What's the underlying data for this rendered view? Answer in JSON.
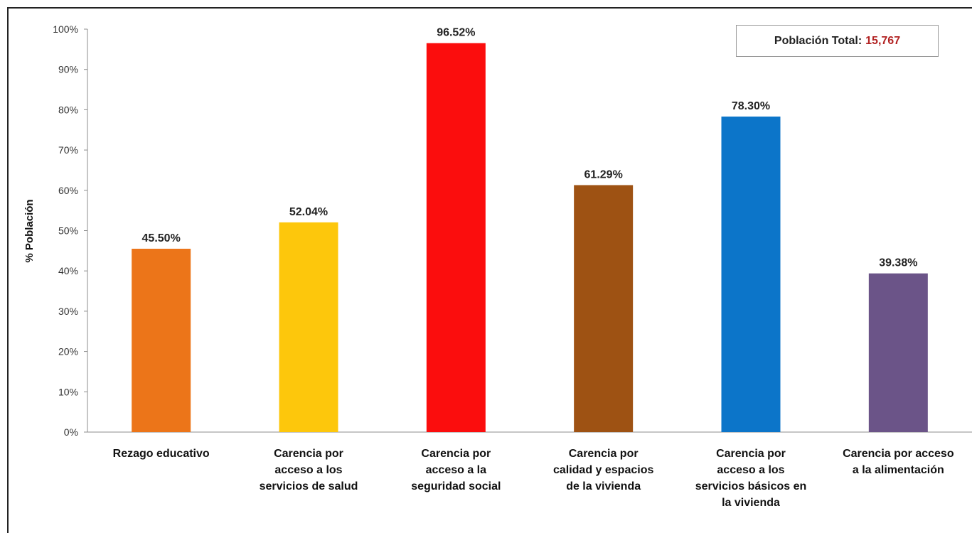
{
  "chart_data": {
    "type": "bar",
    "categories": [
      "Rezago educativo",
      "Carencia por acceso a los servicios de salud",
      "Carencia por acceso a la seguridad social",
      "Carencia por calidad y espacios de la vivienda",
      "Carencia por acceso a los servicios básicos en la vivienda",
      "Carencia por acceso a la alimentación"
    ],
    "category_lines": [
      [
        "Rezago educativo"
      ],
      [
        "Carencia por",
        "acceso a los",
        "servicios de salud"
      ],
      [
        "Carencia por",
        "acceso a la",
        "seguridad social"
      ],
      [
        "Carencia por",
        "calidad y espacios",
        "de la vivienda"
      ],
      [
        "Carencia por",
        "acceso a los",
        "servicios básicos en",
        "la vivienda"
      ],
      [
        "Carencia por acceso",
        "a la alimentación"
      ]
    ],
    "values": [
      45.5,
      52.04,
      96.52,
      61.29,
      78.3,
      39.38
    ],
    "data_labels": [
      "45.50%",
      "52.04%",
      "96.52%",
      "61.29%",
      "78.30%",
      "39.38%"
    ],
    "colors": [
      "#ec7519",
      "#fdc70c",
      "#fb0d0d",
      "#9e5213",
      "#0c75c9",
      "#6b5488"
    ],
    "ylabel": "% Población",
    "ylim": [
      0,
      100
    ],
    "yticks": [
      0,
      10,
      20,
      30,
      40,
      50,
      60,
      70,
      80,
      90,
      100
    ],
    "ytick_labels": [
      "0%",
      "10%",
      "20%",
      "30%",
      "40%",
      "50%",
      "60%",
      "70%",
      "80%",
      "90%",
      "100%"
    ],
    "grid": false,
    "legend": "none"
  },
  "annotation": {
    "label": "Población Total:",
    "value": "15,767"
  }
}
